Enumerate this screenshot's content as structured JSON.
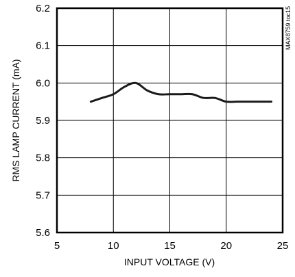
{
  "chart_data": {
    "type": "line",
    "title": "",
    "xlabel": "INPUT VOLTAGE (V)",
    "ylabel": "RMS LAMP CURRENT (mA)",
    "xlim": [
      5,
      25
    ],
    "ylim": [
      5.6,
      6.2
    ],
    "x_ticks": [
      "5",
      "10",
      "15",
      "20",
      "25"
    ],
    "y_ticks": [
      "5.6",
      "5.7",
      "5.8",
      "5.9",
      "6.0",
      "6.1",
      "6.2"
    ],
    "grid": true,
    "annotation": "MAX8759 toc15",
    "line_color": "#1a1a1a",
    "axis_color": "#000000",
    "series": [
      {
        "x": [
          8,
          9,
          10,
          11,
          12,
          13,
          14,
          15,
          16,
          17,
          18,
          19,
          20,
          21,
          22,
          23,
          24
        ],
        "y": [
          5.95,
          5.96,
          5.97,
          5.99,
          6.0,
          5.98,
          5.97,
          5.97,
          5.97,
          5.97,
          5.96,
          5.96,
          5.95,
          5.95,
          5.95,
          5.95,
          5.95
        ]
      }
    ]
  }
}
